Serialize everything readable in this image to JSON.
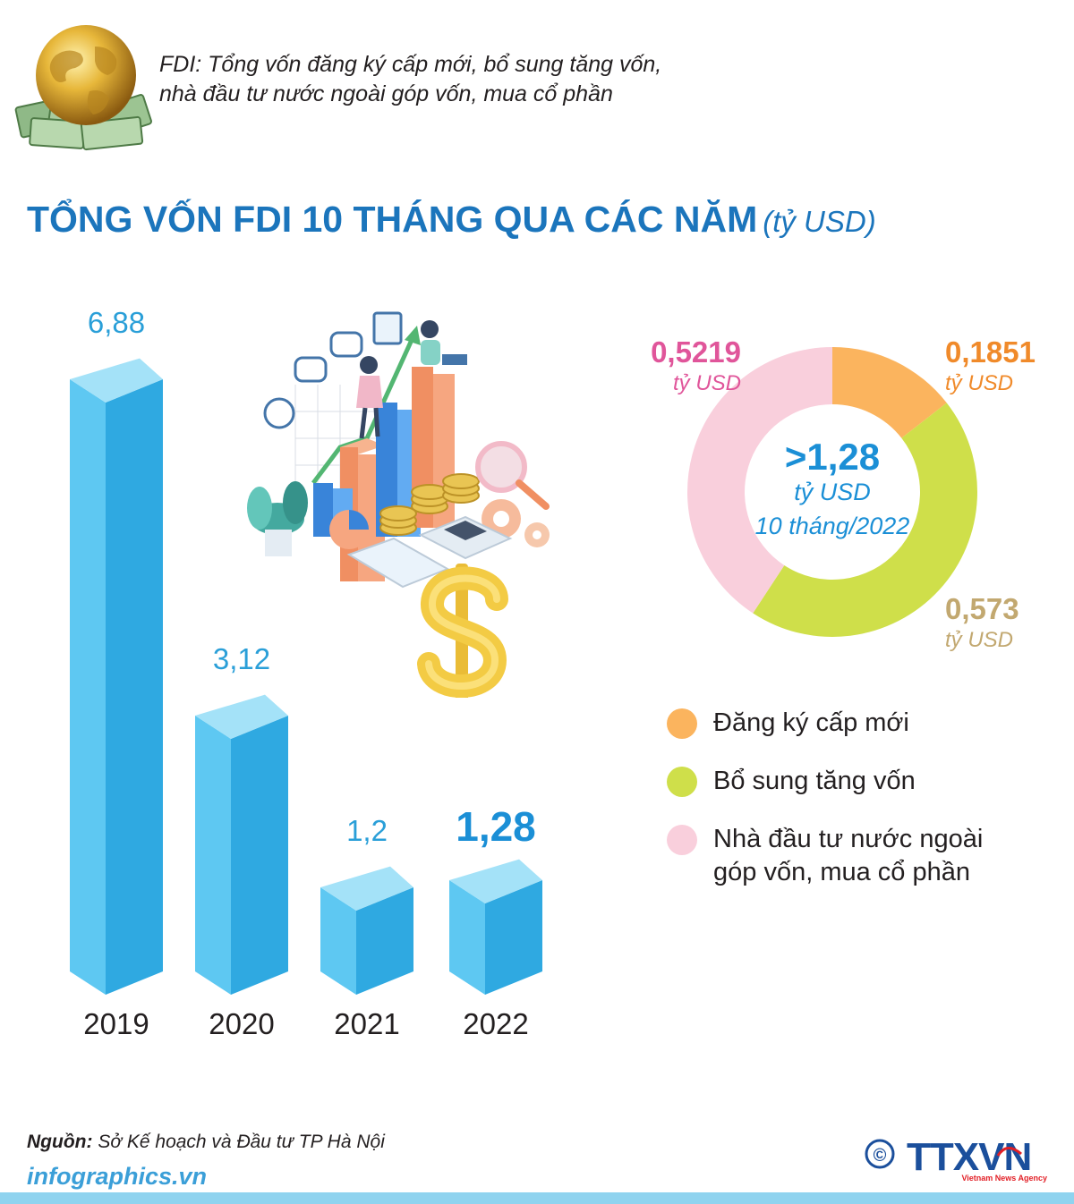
{
  "note": {
    "line1": "FDI: Tổng vốn đăng ký cấp mới, bổ sung tăng vốn,",
    "line2": "nhà đầu tư nước ngoài góp vốn, mua cổ phần"
  },
  "title": {
    "main": "TỔNG VỐN FDI 10 THÁNG QUA CÁC NĂM",
    "unit": "(tỷ USD)"
  },
  "colors": {
    "title": "#1b75bc",
    "bar_front": "#5ec8f2",
    "bar_side": "#2fa9e1",
    "bar_top": "#a4e2f8",
    "new": "#fbb45e",
    "add": "#cfdf4a",
    "contrib": "#f9cfdc"
  },
  "chart_data": [
    {
      "type": "bar",
      "categories": [
        "2019",
        "2020",
        "2021",
        "2022"
      ],
      "values": [
        6.88,
        3.12,
        1.2,
        1.28
      ],
      "value_labels": [
        "6,88",
        "3,12",
        "1,2",
        "1,28"
      ],
      "highlight": "2022",
      "title": "TỔNG VỐN FDI 10 THÁNG QUA CÁC NĂM",
      "ylabel": "",
      "unit": "(tỷ USD)",
      "ylim": [
        0,
        7
      ]
    },
    {
      "type": "pie",
      "donut": true,
      "center": {
        "value": ">1,28",
        "unit": "tỷ USD",
        "period": "10 tháng/2022"
      },
      "series": [
        {
          "name": "Đăng ký cấp mới",
          "value": 0.1851,
          "label": "0,1851",
          "unit": "tỷ USD",
          "color": "#fbb45e",
          "text_color": "#f08a2a"
        },
        {
          "name": "Bổ sung tăng vốn",
          "value": 0.573,
          "label": "0,573",
          "unit": "tỷ USD",
          "color": "#cfdf4a",
          "text_color": "#c2a870"
        },
        {
          "name": "Nhà đầu tư nước ngoài góp vốn, mua cổ phần",
          "value": 0.5219,
          "label": "0,5219",
          "unit": "tỷ USD",
          "color": "#f9cfdc",
          "text_color": "#e0559a"
        }
      ]
    }
  ],
  "legend": [
    {
      "line1": "Đăng ký cấp mới",
      "line2": "",
      "icon": "orange-dot-icon"
    },
    {
      "line1": "Bổ sung tăng vốn",
      "line2": "",
      "icon": "green-dot-icon"
    },
    {
      "line1": "Nhà đầu tư nước ngoài",
      "line2": "góp vốn, mua cổ phần",
      "icon": "pink-dot-icon"
    }
  ],
  "source": {
    "label": "Nguồn:",
    "text": "Sở Kế hoạch và Đầu tư TP Hà Nội"
  },
  "footer": {
    "site": "infographics.vn",
    "agency": "TTXVN",
    "agency_sub": "Vietnam News Agency",
    "copyright": "©"
  }
}
